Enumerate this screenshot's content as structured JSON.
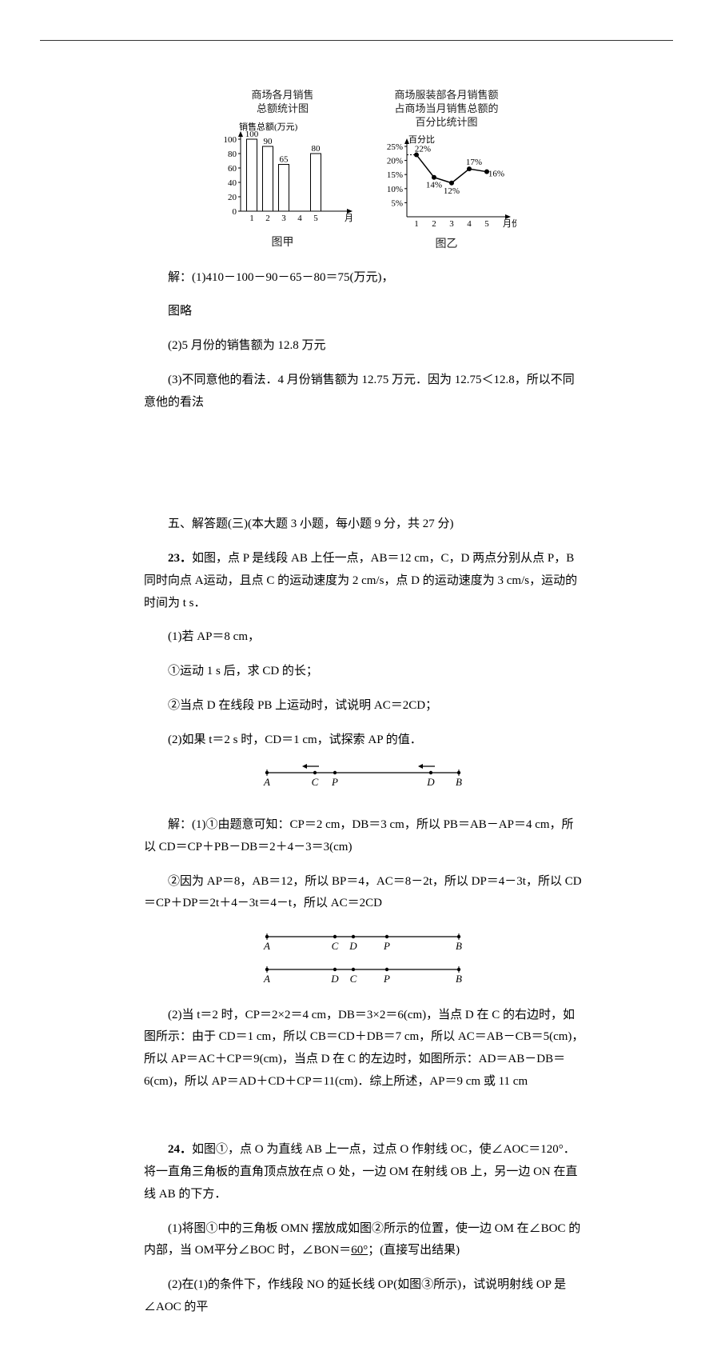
{
  "chart_jia": {
    "title_l1": "商场各月销售",
    "title_l2": "总额统计图",
    "y_label": "销售总额(万元)",
    "x_label": "月份",
    "caption": "图甲",
    "type": "bar",
    "categories": [
      "1",
      "2",
      "3",
      "4",
      "5"
    ],
    "values": [
      100,
      90,
      65,
      null,
      80
    ],
    "bar_labels": [
      "100",
      "90",
      "65",
      "",
      "80"
    ],
    "ylim": [
      0,
      100
    ],
    "yticks": [
      0,
      20,
      40,
      60,
      80,
      100
    ],
    "bar_color": "#ffffff",
    "bar_stroke": "#000000",
    "axis_color": "#000000",
    "font_size_axis": 11
  },
  "chart_yi": {
    "title_l1": "商场服装部各月销售额",
    "title_l2": "占商场当月销售总额的",
    "title_l3": "百分比统计图",
    "y_label": "百分比",
    "x_label": "月份",
    "caption": "图乙",
    "type": "line",
    "categories": [
      "1",
      "2",
      "3",
      "4",
      "5"
    ],
    "values": [
      22,
      14,
      12,
      17,
      16
    ],
    "point_labels": [
      "22%",
      "14%",
      "12%",
      "17%",
      "16%"
    ],
    "ylim": [
      0,
      25
    ],
    "yticks": [
      5,
      10,
      15,
      20,
      25
    ],
    "ytick_labels": [
      "5%",
      "10%",
      "15%",
      "20%",
      "25%"
    ],
    "line_color": "#000000",
    "marker_fill": "#000000",
    "axis_color": "#000000",
    "font_size_axis": 11
  },
  "sol22": {
    "l1_prefix": "解：",
    "l1": "(1)410－100－90－65－80＝75(万元)，",
    "l2": "图略",
    "l3": "(2)5 月份的销售额为 12.8 万元",
    "l4": "(3)不同意他的看法．4 月份销售额为 12.75 万元．因为 12.75＜12.8，所以不同意他的看法"
  },
  "section5": {
    "heading": "五、解答题(三)(本大题 3 小题，每小题 9 分，共 27 分)"
  },
  "q23": {
    "head_no": "23．",
    "p1": "如图，点 P 是线段 AB 上任一点，AB＝12 cm，C，D 两点分别从点 P，B 同时向点 A运动，且点 C 的运动速度为 2 cm/s，点 D 的运动速度为 3 cm/s，运动的时间为 t s．",
    "p2": "(1)若 AP＝8 cm，",
    "p3": "①运动 1 s 后，求 CD 的长；",
    "p4": "②当点 D 在线段 PB 上运动时，试说明 AC＝2CD；",
    "p5": "(2)如果 t＝2 s 时，CD＝1 cm，试探索 AP 的值．",
    "diagram1": {
      "pts": [
        {
          "x": 0,
          "lbl": "A"
        },
        {
          "x": 60,
          "lbl": "C",
          "arrow": "left"
        },
        {
          "x": 85,
          "lbl": "P"
        },
        {
          "x": 205,
          "lbl": "D",
          "arrow": "left"
        },
        {
          "x": 240,
          "lbl": "B"
        }
      ],
      "length": 240
    },
    "sol_l1_pref": "解：",
    "sol_l1": "(1)①由题意可知：CP＝2 cm，DB＝3 cm，所以 PB＝AB－AP＝4 cm，所以 CD＝CP＋PB－DB＝2＋4－3＝3(cm)",
    "sol_l2": "②因为 AP＝8，AB＝12，所以 BP＝4，AC＝8－2t，所以 DP＝4－3t，所以 CD＝CP＋DP＝2t＋4－3t＝4－t，所以 AC＝2CD",
    "diagram2a": {
      "pts": [
        {
          "x": 0,
          "lbl": "A"
        },
        {
          "x": 85,
          "lbl": "C"
        },
        {
          "x": 108,
          "lbl": "D"
        },
        {
          "x": 150,
          "lbl": "P"
        },
        {
          "x": 240,
          "lbl": "B"
        }
      ],
      "length": 240
    },
    "diagram2b": {
      "pts": [
        {
          "x": 0,
          "lbl": "A"
        },
        {
          "x": 85,
          "lbl": "D"
        },
        {
          "x": 108,
          "lbl": "C"
        },
        {
          "x": 150,
          "lbl": "P"
        },
        {
          "x": 240,
          "lbl": "B"
        }
      ],
      "length": 240
    },
    "sol_l3": "(2)当 t＝2 时，CP＝2×2＝4 cm，DB＝3×2＝6(cm)，当点 D 在 C 的右边时，如图所示：由于 CD＝1 cm，所以 CB＝CD＋DB＝7 cm，所以 AC＝AB－CB＝5(cm)，所以 AP＝AC＋CP＝9(cm)，当点 D 在 C 的左边时，如图所示：AD＝AB－DB＝6(cm)，所以 AP＝AD＋CD＋CP＝11(cm)．综上所述，AP＝9 cm 或 11 cm"
  },
  "q24": {
    "head_no": "24．",
    "p1": "如图①，点 O 为直线 AB 上一点，过点 O 作射线 OC，使∠AOC＝120°．将一直角三角板的直角顶点放在点 O 处，一边 OM 在射线 OB 上，另一边 ON 在直线 AB 的下方．",
    "p2a": "(1)将图①中的三角板 OMN 摆放成如图②所示的位置，使一边 OM 在∠BOC 的内部，当 OM平分∠BOC 时，∠BON＝",
    "p2_blank": "60°",
    "p2b": "；(直接写出结果)",
    "p3": "(2)在(1)的条件下，作线段 NO 的延长线 OP(如图③所示)，试说明射线 OP 是∠AOC 的平"
  }
}
